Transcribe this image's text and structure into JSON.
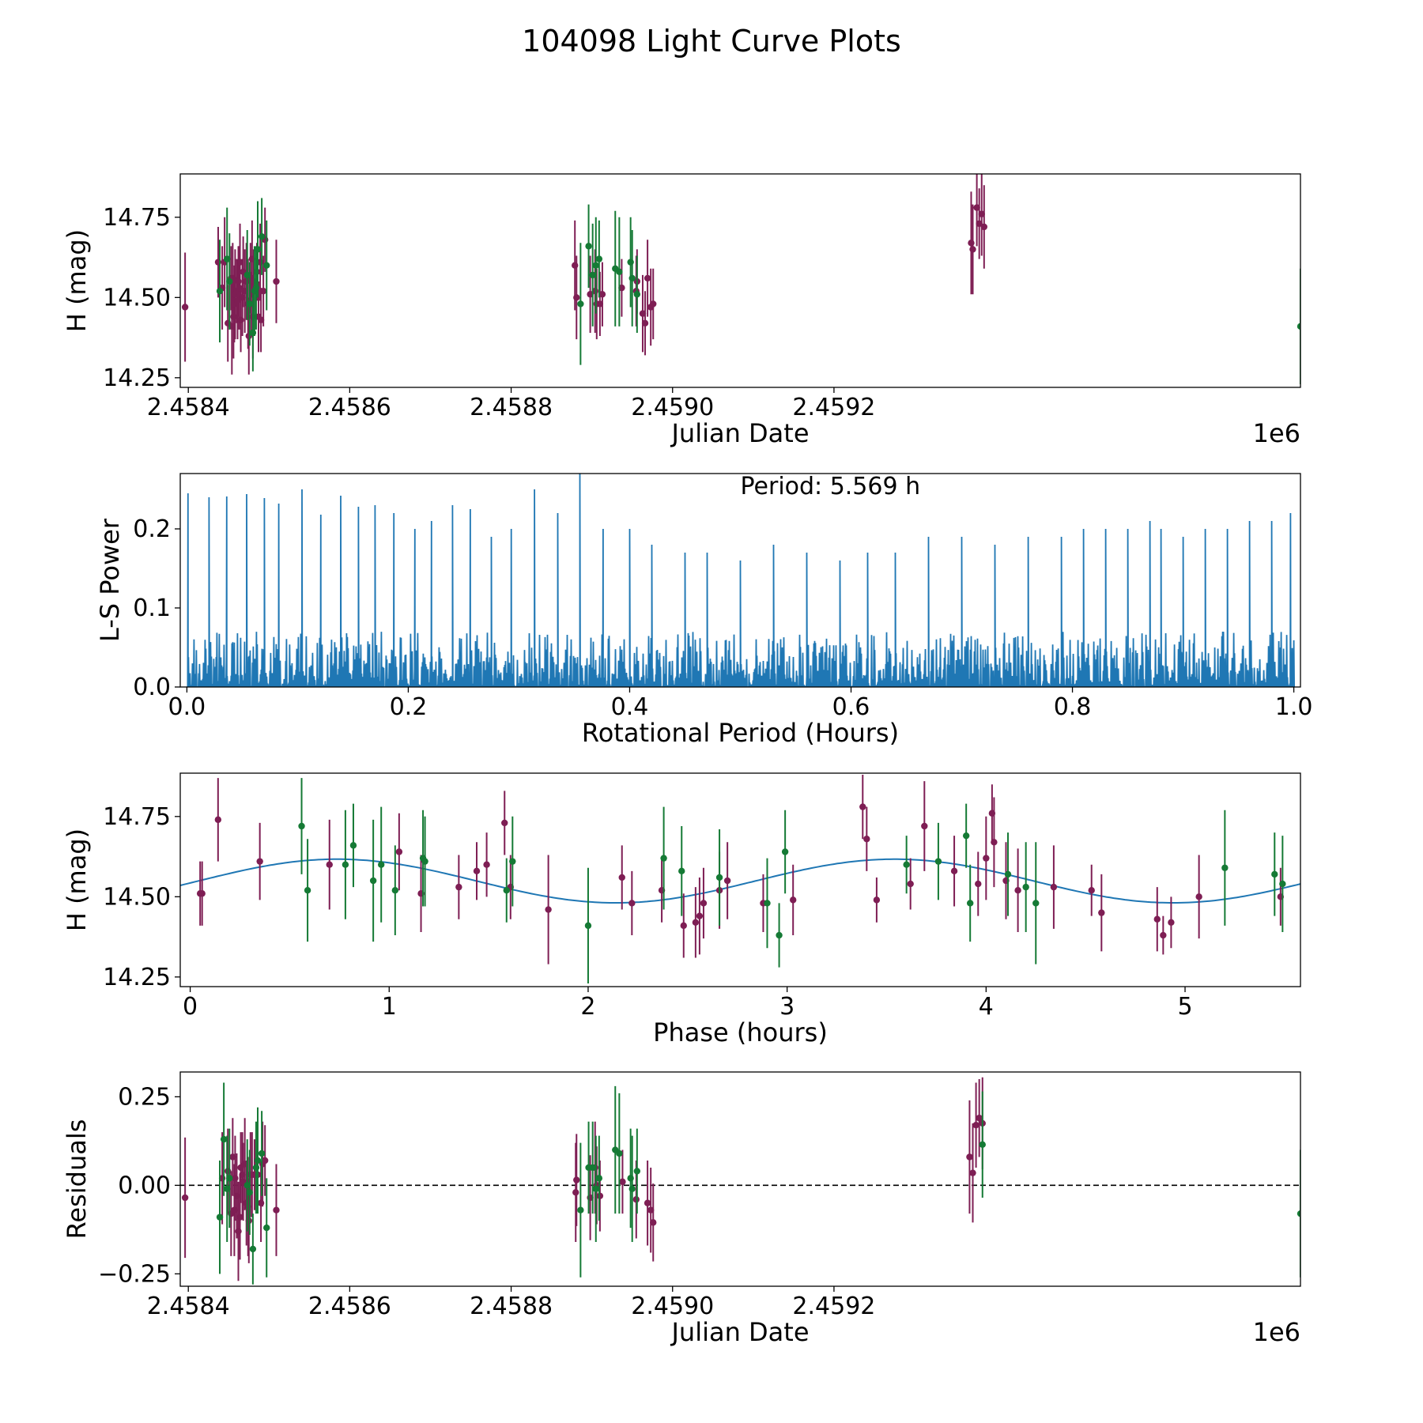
{
  "figure": {
    "title": "104098 Light Curve Plots"
  },
  "colors": {
    "filter_a": "#7e1e54",
    "filter_b": "#157a35",
    "line": "#1f77b4",
    "axis": "#000000",
    "zero_line": "#000000"
  },
  "chart_data": [
    {
      "id": "lightcurve",
      "type": "scatter",
      "title": "",
      "xlabel": "Julian Date",
      "ylabel": "H (mag)",
      "x_offset_label": "1e6",
      "xlim": [
        2458390,
        2459778
      ],
      "ylim": [
        14.22,
        14.885
      ],
      "xticks": [
        2458400,
        2458600,
        2458800,
        2459000,
        2459200
      ],
      "xtick_labels": [
        "2.4584",
        "2.4586",
        "2.4588",
        "2.4590",
        "2.4592"
      ],
      "yticks": [
        14.25,
        14.5,
        14.75
      ],
      "ytick_labels": [
        "14.25",
        "14.50",
        "14.75"
      ],
      "series": [
        {
          "name": "filter_a",
          "x": [
            2458396,
            2458437,
            2458442,
            2458445,
            2458449,
            2458453,
            2458454,
            2458455,
            2458456,
            2458457,
            2458458,
            2458460,
            2458461,
            2458462,
            2458463,
            2458464,
            2458465,
            2458467,
            2458468,
            2458470,
            2458472,
            2458474,
            2458475,
            2458477,
            2458478,
            2458479,
            2458480,
            2458481,
            2458485,
            2458487,
            2458489,
            2458490,
            2458493,
            2458495,
            2458509,
            2458879,
            2458881,
            2458898,
            2458904,
            2458906,
            2458910,
            2458913,
            2458937,
            2458955,
            2458956,
            2458963,
            2458966,
            2458969,
            2458973,
            2458976,
            2459370,
            2459372,
            2459377,
            2459380,
            2459383,
            2459386
          ],
          "y": [
            14.47,
            14.61,
            14.53,
            14.61,
            14.42,
            14.56,
            14.41,
            14.56,
            14.44,
            14.48,
            14.51,
            14.52,
            14.49,
            14.55,
            14.53,
            14.61,
            14.43,
            14.5,
            14.58,
            14.52,
            14.55,
            14.48,
            14.38,
            14.56,
            14.48,
            14.62,
            14.44,
            14.55,
            14.58,
            14.44,
            14.61,
            14.43,
            14.52,
            14.68,
            14.55,
            14.6,
            14.5,
            14.51,
            14.52,
            14.48,
            14.48,
            14.51,
            14.53,
            14.52,
            14.55,
            14.45,
            14.42,
            14.56,
            14.47,
            14.48,
            14.67,
            14.65,
            14.78,
            14.73,
            14.76,
            14.72
          ],
          "err": [
            0.17,
            0.11,
            0.13,
            0.14,
            0.12,
            0.1,
            0.15,
            0.11,
            0.13,
            0.12,
            0.14,
            0.1,
            0.12,
            0.11,
            0.13,
            0.12,
            0.1,
            0.12,
            0.11,
            0.13,
            0.12,
            0.14,
            0.12,
            0.11,
            0.1,
            0.12,
            0.13,
            0.1,
            0.09,
            0.11,
            0.12,
            0.1,
            0.11,
            0.1,
            0.13,
            0.14,
            0.13,
            0.12,
            0.13,
            0.11,
            0.1,
            0.1,
            0.09,
            0.11,
            0.1,
            0.12,
            0.1,
            0.12,
            0.12,
            0.11,
            0.16,
            0.14,
            0.12,
            0.11,
            0.13,
            0.13
          ]
        },
        {
          "name": "filter_b",
          "x": [
            2458439,
            2458448,
            2458451,
            2458473,
            2458476,
            2458480,
            2458482,
            2458484,
            2458486,
            2458491,
            2458497,
            2458886,
            2458896,
            2458901,
            2458905,
            2458909,
            2458929,
            2458934,
            2458948,
            2458950,
            2458956,
            2459778
          ],
          "y": [
            14.52,
            14.62,
            14.55,
            14.57,
            14.48,
            14.39,
            14.52,
            14.53,
            14.65,
            14.69,
            14.6,
            14.48,
            14.66,
            14.57,
            14.6,
            14.62,
            14.59,
            14.58,
            14.61,
            14.56,
            14.51,
            14.41
          ],
          "err": [
            0.16,
            0.16,
            0.15,
            0.14,
            0.13,
            0.12,
            0.14,
            0.13,
            0.15,
            0.12,
            0.14,
            0.19,
            0.13,
            0.16,
            0.15,
            0.12,
            0.18,
            0.17,
            0.14,
            0.15,
            0.12,
            0.18
          ]
        }
      ]
    },
    {
      "id": "periodogram",
      "type": "line",
      "title": "",
      "xlabel": "Rotational Period (Hours)",
      "ylabel": "L-S Power",
      "annotation": "Period: 5.569 h",
      "xlim": [
        -0.006,
        1.006
      ],
      "ylim": [
        0.0,
        0.27
      ],
      "xticks": [
        0.0,
        0.2,
        0.4,
        0.6,
        0.8,
        1.0
      ],
      "xtick_labels": [
        "0.0",
        "0.2",
        "0.4",
        "0.6",
        "0.8",
        "1.0"
      ],
      "yticks": [
        0.0,
        0.1,
        0.2
      ],
      "ytick_labels": [
        "0.0",
        "0.1",
        "0.2"
      ],
      "peaks": {
        "x": [
          0.001,
          0.02,
          0.036,
          0.054,
          0.07,
          0.083,
          0.104,
          0.121,
          0.139,
          0.155,
          0.17,
          0.187,
          0.206,
          0.221,
          0.24,
          0.256,
          0.275,
          0.293,
          0.314,
          0.335,
          0.355,
          0.376,
          0.4,
          0.42,
          0.45,
          0.47,
          0.5,
          0.53,
          0.56,
          0.59,
          0.615,
          0.64,
          0.67,
          0.7,
          0.73,
          0.76,
          0.79,
          0.81,
          0.83,
          0.85,
          0.87,
          0.88,
          0.9,
          0.92,
          0.94,
          0.96,
          0.98,
          0.997
        ],
        "y": [
          0.245,
          0.24,
          0.241,
          0.244,
          0.239,
          0.232,
          0.25,
          0.218,
          0.242,
          0.228,
          0.23,
          0.22,
          0.2,
          0.21,
          0.23,
          0.225,
          0.19,
          0.2,
          0.25,
          0.22,
          0.27,
          0.2,
          0.2,
          0.18,
          0.17,
          0.17,
          0.16,
          0.18,
          0.17,
          0.16,
          0.17,
          0.17,
          0.19,
          0.19,
          0.18,
          0.19,
          0.19,
          0.2,
          0.2,
          0.2,
          0.21,
          0.2,
          0.19,
          0.2,
          0.2,
          0.21,
          0.21,
          0.22
        ]
      },
      "noise_level": 0.07,
      "noise_samples": 1400
    },
    {
      "id": "phased",
      "type": "scatter",
      "title": "",
      "xlabel": "Phase (hours)",
      "ylabel": "H (mag)",
      "xlim": [
        -0.05,
        5.58
      ],
      "ylim": [
        14.22,
        14.885
      ],
      "xticks": [
        0,
        1,
        2,
        3,
        4,
        5
      ],
      "xtick_labels": [
        "0",
        "1",
        "2",
        "3",
        "4",
        "5"
      ],
      "yticks": [
        14.25,
        14.5,
        14.75
      ],
      "ytick_labels": [
        "14.25",
        "14.50",
        "14.75"
      ],
      "model": {
        "mean": 14.549,
        "amplitude": 0.068,
        "period": 2.8,
        "peak_phase": 0.74
      },
      "series": [
        {
          "name": "filter_a",
          "x": [
            0.05,
            0.06,
            0.14,
            0.35,
            0.7,
            1.05,
            1.16,
            1.35,
            1.44,
            1.49,
            1.58,
            1.61,
            1.8,
            2.17,
            2.22,
            2.37,
            2.48,
            2.54,
            2.56,
            2.58,
            2.66,
            2.7,
            2.88,
            3.03,
            3.38,
            3.4,
            3.45,
            3.62,
            3.69,
            3.84,
            3.96,
            4.0,
            4.03,
            4.04,
            4.1,
            4.16,
            4.34,
            4.53,
            4.58,
            4.86,
            4.89,
            4.93,
            5.07,
            5.48
          ],
          "y": [
            14.51,
            14.51,
            14.74,
            14.61,
            14.6,
            14.64,
            14.51,
            14.53,
            14.58,
            14.6,
            14.73,
            14.53,
            14.46,
            14.56,
            14.48,
            14.52,
            14.41,
            14.42,
            14.44,
            14.48,
            14.52,
            14.55,
            14.48,
            14.49,
            14.78,
            14.68,
            14.49,
            14.54,
            14.72,
            14.58,
            14.54,
            14.62,
            14.76,
            14.67,
            14.55,
            14.52,
            14.53,
            14.52,
            14.45,
            14.43,
            14.38,
            14.42,
            14.5,
            14.5
          ],
          "err": [
            0.1,
            0.1,
            0.13,
            0.12,
            0.14,
            0.12,
            0.12,
            0.1,
            0.09,
            0.1,
            0.1,
            0.1,
            0.17,
            0.1,
            0.1,
            0.1,
            0.1,
            0.11,
            0.12,
            0.11,
            0.12,
            0.12,
            0.09,
            0.11,
            0.1,
            0.1,
            0.07,
            0.08,
            0.14,
            0.11,
            0.1,
            0.13,
            0.09,
            0.14,
            0.12,
            0.13,
            0.13,
            0.08,
            0.12,
            0.1,
            0.06,
            0.08,
            0.13,
            0.09
          ]
        },
        {
          "name": "filter_b",
          "x": [
            0.56,
            0.59,
            0.78,
            0.82,
            0.92,
            0.96,
            1.03,
            1.17,
            1.18,
            1.59,
            1.62,
            2.0,
            2.38,
            2.47,
            2.66,
            2.9,
            2.96,
            2.99,
            3.6,
            3.76,
            3.9,
            3.92,
            4.11,
            4.2,
            4.25,
            5.2,
            5.45,
            5.49
          ],
          "y": [
            14.72,
            14.52,
            14.6,
            14.66,
            14.55,
            14.6,
            14.52,
            14.62,
            14.61,
            14.52,
            14.61,
            14.41,
            14.62,
            14.58,
            14.56,
            14.48,
            14.38,
            14.64,
            14.6,
            14.61,
            14.69,
            14.48,
            14.57,
            14.53,
            14.48,
            14.59,
            14.57,
            14.54
          ],
          "err": [
            0.15,
            0.16,
            0.17,
            0.13,
            0.19,
            0.18,
            0.14,
            0.15,
            0.14,
            0.1,
            0.14,
            0.18,
            0.16,
            0.14,
            0.15,
            0.14,
            0.1,
            0.13,
            0.09,
            0.12,
            0.1,
            0.12,
            0.13,
            0.14,
            0.19,
            0.18,
            0.13,
            0.15
          ]
        }
      ]
    },
    {
      "id": "residuals",
      "type": "scatter",
      "title": "",
      "xlabel": "Julian Date",
      "ylabel": "Residuals",
      "x_offset_label": "1e6",
      "xlim": [
        2458390,
        2459778
      ],
      "ylim": [
        -0.285,
        0.32
      ],
      "xticks": [
        2458400,
        2458600,
        2458800,
        2459000,
        2459200
      ],
      "xtick_labels": [
        "2.4584",
        "2.4586",
        "2.4588",
        "2.4590",
        "2.4592"
      ],
      "yticks": [
        -0.25,
        0.0,
        0.25
      ],
      "ytick_labels": [
        "−0.25",
        "0.00",
        "0.25"
      ],
      "zero_line": 0.0,
      "series": [
        {
          "name": "filter_a",
          "x": [
            2458396,
            2458442,
            2458449,
            2458453,
            2458455,
            2458457,
            2458458,
            2458460,
            2458462,
            2458464,
            2458465,
            2458467,
            2458468,
            2458470,
            2458472,
            2458474,
            2458475,
            2458477,
            2458479,
            2458482,
            2458486,
            2458490,
            2458492,
            2458495,
            2458509,
            2458880,
            2458881,
            2458898,
            2458904,
            2458906,
            2458910,
            2458938,
            2458955,
            2458969,
            2458973,
            2458976,
            2459368,
            2459372,
            2459376,
            2459380,
            2459384
          ],
          "y": [
            -0.035,
            0.02,
            0.04,
            -0.08,
            0.08,
            -0.07,
            0.02,
            -0.03,
            -0.13,
            -0.09,
            0.05,
            0.03,
            0.01,
            0.06,
            -0.05,
            -0.06,
            -0.1,
            0.03,
            0.03,
            0.03,
            0.03,
            -0.05,
            0.06,
            0.07,
            -0.07,
            -0.02,
            0.015,
            -0.035,
            0.05,
            0.0,
            -0.03,
            0.01,
            -0.04,
            -0.05,
            -0.07,
            -0.105,
            0.08,
            0.035,
            0.17,
            0.19,
            0.175
          ],
          "err": [
            0.17,
            0.13,
            0.12,
            0.12,
            0.11,
            0.13,
            0.12,
            0.12,
            0.14,
            0.12,
            0.1,
            0.12,
            0.11,
            0.13,
            0.12,
            0.14,
            0.12,
            0.12,
            0.12,
            0.1,
            0.1,
            0.11,
            0.12,
            0.1,
            0.13,
            0.14,
            0.13,
            0.12,
            0.13,
            0.11,
            0.1,
            0.09,
            0.11,
            0.12,
            0.12,
            0.11,
            0.16,
            0.14,
            0.12,
            0.11,
            0.13
          ]
        },
        {
          "name": "filter_b",
          "x": [
            2458439,
            2458444,
            2458448,
            2458451,
            2458473,
            2458476,
            2458480,
            2458484,
            2458486,
            2458491,
            2458497,
            2458886,
            2458896,
            2458901,
            2458905,
            2458909,
            2458929,
            2458934,
            2458948,
            2458950,
            2458956,
            2459384,
            2459778
          ],
          "y": [
            -0.09,
            0.13,
            -0.01,
            0.02,
            0.0,
            -0.02,
            -0.18,
            0.05,
            0.07,
            0.09,
            -0.12,
            -0.07,
            0.05,
            0.05,
            -0.01,
            0.02,
            0.1,
            0.09,
            0.02,
            -0.01,
            0.04,
            0.115,
            -0.08
          ],
          "err": [
            0.16,
            0.16,
            0.15,
            0.14,
            0.13,
            0.12,
            0.1,
            0.13,
            0.15,
            0.12,
            0.14,
            0.19,
            0.13,
            0.13,
            0.15,
            0.12,
            0.18,
            0.17,
            0.14,
            0.15,
            0.12,
            0.15,
            0.18
          ]
        }
      ]
    }
  ]
}
